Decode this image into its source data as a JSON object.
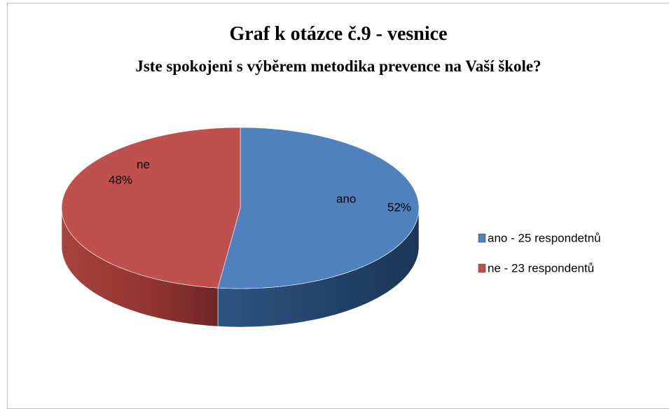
{
  "chart_data": {
    "type": "pie",
    "title": "Graf k otázce č.9 - vesnice",
    "subtitle": "Jste spokojeni s výběrem metodika prevence na Vaší škole?",
    "categories": [
      "ano",
      "ne"
    ],
    "values": [
      52,
      48
    ],
    "value_labels": [
      "52%",
      "48%"
    ],
    "colors": [
      "#4f81bd",
      "#c0504d"
    ],
    "legend": [
      "ano  - 25 respondetnů",
      "ne - 23 respondentů"
    ],
    "legend_position": "right"
  }
}
